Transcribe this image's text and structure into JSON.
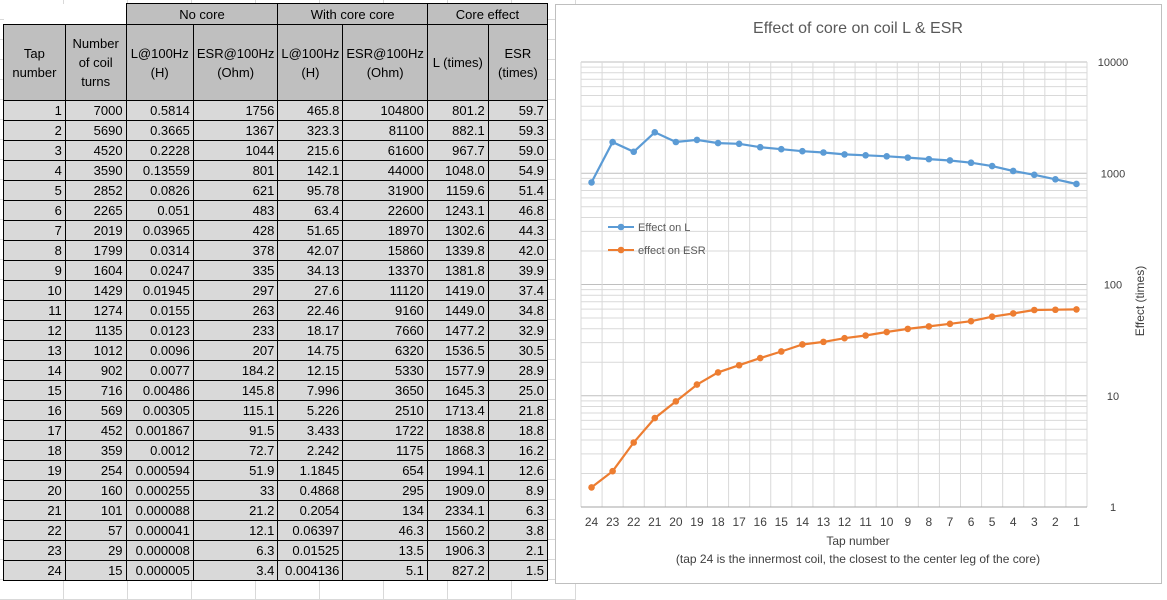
{
  "table": {
    "group_headers": [
      "No core",
      "With core core",
      "Core effect"
    ],
    "column_headers": [
      "Tap number",
      "Number of coil turns",
      "L@100Hz (H)",
      "ESR@100Hz (Ohm)",
      "L@100Hz (H)",
      "ESR@100Hz (Ohm)",
      "L (times)",
      "ESR (times)"
    ],
    "rows": [
      [
        "1",
        "7000",
        "0.5814",
        "1756",
        "465.8",
        "104800",
        "801.2",
        "59.7"
      ],
      [
        "2",
        "5690",
        "0.3665",
        "1367",
        "323.3",
        "81100",
        "882.1",
        "59.3"
      ],
      [
        "3",
        "4520",
        "0.2228",
        "1044",
        "215.6",
        "61600",
        "967.7",
        "59.0"
      ],
      [
        "4",
        "3590",
        "0.13559",
        "801",
        "142.1",
        "44000",
        "1048.0",
        "54.9"
      ],
      [
        "5",
        "2852",
        "0.0826",
        "621",
        "95.78",
        "31900",
        "1159.6",
        "51.4"
      ],
      [
        "6",
        "2265",
        "0.051",
        "483",
        "63.4",
        "22600",
        "1243.1",
        "46.8"
      ],
      [
        "7",
        "2019",
        "0.03965",
        "428",
        "51.65",
        "18970",
        "1302.6",
        "44.3"
      ],
      [
        "8",
        "1799",
        "0.0314",
        "378",
        "42.07",
        "15860",
        "1339.8",
        "42.0"
      ],
      [
        "9",
        "1604",
        "0.0247",
        "335",
        "34.13",
        "13370",
        "1381.8",
        "39.9"
      ],
      [
        "10",
        "1429",
        "0.01945",
        "297",
        "27.6",
        "11120",
        "1419.0",
        "37.4"
      ],
      [
        "11",
        "1274",
        "0.0155",
        "263",
        "22.46",
        "9160",
        "1449.0",
        "34.8"
      ],
      [
        "12",
        "1135",
        "0.0123",
        "233",
        "18.17",
        "7660",
        "1477.2",
        "32.9"
      ],
      [
        "13",
        "1012",
        "0.0096",
        "207",
        "14.75",
        "6320",
        "1536.5",
        "30.5"
      ],
      [
        "14",
        "902",
        "0.0077",
        "184.2",
        "12.15",
        "5330",
        "1577.9",
        "28.9"
      ],
      [
        "15",
        "716",
        "0.00486",
        "145.8",
        "7.996",
        "3650",
        "1645.3",
        "25.0"
      ],
      [
        "16",
        "569",
        "0.00305",
        "115.1",
        "5.226",
        "2510",
        "1713.4",
        "21.8"
      ],
      [
        "17",
        "452",
        "0.001867",
        "91.5",
        "3.433",
        "1722",
        "1838.8",
        "18.8"
      ],
      [
        "18",
        "359",
        "0.0012",
        "72.7",
        "2.242",
        "1175",
        "1868.3",
        "16.2"
      ],
      [
        "19",
        "254",
        "0.000594",
        "51.9",
        "1.1845",
        "654",
        "1994.1",
        "12.6"
      ],
      [
        "20",
        "160",
        "0.000255",
        "33",
        "0.4868",
        "295",
        "1909.0",
        "8.9"
      ],
      [
        "21",
        "101",
        "0.000088",
        "21.2",
        "0.2054",
        "134",
        "2334.1",
        "6.3"
      ],
      [
        "22",
        "57",
        "0.000041",
        "12.1",
        "0.06397",
        "46.3",
        "1560.2",
        "3.8"
      ],
      [
        "23",
        "29",
        "0.000008",
        "6.3",
        "0.01525",
        "13.5",
        "1906.3",
        "2.1"
      ],
      [
        "24",
        "15",
        "0.000005",
        "3.4",
        "0.004136",
        "5.1",
        "827.2",
        "1.5"
      ]
    ]
  },
  "chart_data": {
    "type": "line",
    "title": "Effect of core on coil L & ESR",
    "xlabel": "Tap number",
    "x_caption": "(tap 24 is the innermost coil, the closest to the center leg of the core)",
    "ylabel": "Effect (times)",
    "yscale": "log",
    "ylim": [
      1,
      10000
    ],
    "y_ticks": [
      "1",
      "10",
      "100",
      "1000",
      "10000"
    ],
    "x": [
      24,
      23,
      22,
      21,
      20,
      19,
      18,
      17,
      16,
      15,
      14,
      13,
      12,
      11,
      10,
      9,
      8,
      7,
      6,
      5,
      4,
      3,
      2,
      1
    ],
    "legend_position": "left-middle",
    "grid": true,
    "series": [
      {
        "name": "Effect on L",
        "color": "#5b9bd5",
        "values": [
          827.2,
          1906.3,
          1560.2,
          2334.1,
          1909.0,
          1994.1,
          1868.3,
          1838.8,
          1713.4,
          1645.3,
          1577.9,
          1536.5,
          1477.2,
          1449.0,
          1419.0,
          1381.8,
          1339.8,
          1302.6,
          1243.1,
          1159.6,
          1048.0,
          967.7,
          882.1,
          801.2
        ]
      },
      {
        "name": "effect on ESR",
        "color": "#ed7d31",
        "values": [
          1.5,
          2.1,
          3.8,
          6.3,
          8.9,
          12.6,
          16.2,
          18.8,
          21.8,
          25.0,
          28.9,
          30.5,
          32.9,
          34.8,
          37.4,
          39.9,
          42.0,
          44.3,
          46.8,
          51.4,
          54.9,
          59.0,
          59.3,
          59.7
        ]
      }
    ]
  }
}
